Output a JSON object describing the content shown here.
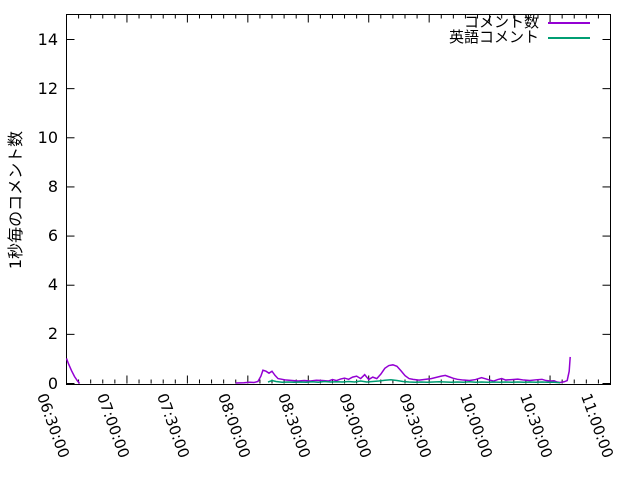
{
  "background": "#ffffff",
  "axis_color": "#000000",
  "chart_data": {
    "type": "line",
    "title": "",
    "xlabel": "",
    "ylabel": "1秒毎のコメント数",
    "grid": false,
    "legend_position": "top-right-inside",
    "ylim": [
      0,
      15
    ],
    "yticks": [
      0,
      2,
      4,
      6,
      8,
      10,
      12,
      14
    ],
    "x_axis": {
      "start": "06:30:00",
      "end": "11:00:00",
      "span_minutes": 270,
      "major_tick_interval_min": 30,
      "minor_tick_interval_min": 6,
      "tick_labels": [
        "06:30:00",
        "07:00:00",
        "07:30:00",
        "08:00:00",
        "08:30:00",
        "09:00:00",
        "09:30:00",
        "10:00:00",
        "10:30:00",
        "11:00:00"
      ]
    },
    "series": [
      {
        "name": "コメント数",
        "color": "#9400d3",
        "x_unit": "minutes_after_06:30:00",
        "segments": [
          [
            [
              0,
              1.02
            ],
            [
              1,
              0.8
            ],
            [
              2.5,
              0.52
            ],
            [
              4,
              0.28
            ],
            [
              5.5,
              0.1
            ],
            [
              6.5,
              0
            ]
          ],
          [
            [
              84,
              0.02
            ],
            [
              88,
              0.03
            ],
            [
              91,
              0.05
            ],
            [
              93,
              0.04
            ],
            [
              95,
              0.08
            ],
            [
              96.5,
              0.3
            ],
            [
              97.5,
              0.54
            ],
            [
              99,
              0.5
            ],
            [
              100.5,
              0.42
            ],
            [
              102,
              0.5
            ],
            [
              103.5,
              0.33
            ],
            [
              105,
              0.2
            ],
            [
              107,
              0.17
            ],
            [
              109,
              0.14
            ],
            [
              112,
              0.12
            ],
            [
              115,
              0.1
            ],
            [
              118,
              0.12
            ],
            [
              121,
              0.1
            ],
            [
              124,
              0.13
            ],
            [
              127,
              0.12
            ],
            [
              130,
              0.1
            ],
            [
              132,
              0.16
            ],
            [
              134,
              0.12
            ],
            [
              136,
              0.18
            ],
            [
              138,
              0.22
            ],
            [
              140,
              0.17
            ],
            [
              142,
              0.26
            ],
            [
              144,
              0.3
            ],
            [
              146,
              0.2
            ],
            [
              148,
              0.36
            ],
            [
              150,
              0.16
            ],
            [
              152,
              0.26
            ],
            [
              154,
              0.2
            ],
            [
              156,
              0.38
            ],
            [
              158,
              0.62
            ],
            [
              160,
              0.73
            ],
            [
              162,
              0.76
            ],
            [
              164,
              0.7
            ],
            [
              166,
              0.52
            ],
            [
              168,
              0.32
            ],
            [
              170,
              0.2
            ],
            [
              172,
              0.17
            ],
            [
              175,
              0.14
            ],
            [
              178,
              0.17
            ],
            [
              181,
              0.2
            ],
            [
              184,
              0.26
            ],
            [
              186,
              0.3
            ],
            [
              188,
              0.33
            ],
            [
              190,
              0.27
            ],
            [
              192,
              0.21
            ],
            [
              194,
              0.17
            ],
            [
              197,
              0.14
            ],
            [
              200,
              0.12
            ],
            [
              203,
              0.16
            ],
            [
              206,
              0.24
            ],
            [
              208,
              0.19
            ],
            [
              210,
              0.14
            ],
            [
              212,
              0.1
            ],
            [
              214,
              0.16
            ],
            [
              216,
              0.2
            ],
            [
              218,
              0.14
            ],
            [
              221,
              0.16
            ],
            [
              224,
              0.18
            ],
            [
              227,
              0.14
            ],
            [
              230,
              0.12
            ],
            [
              233,
              0.15
            ],
            [
              236,
              0.17
            ],
            [
              238,
              0.12
            ],
            [
              240,
              0.1
            ],
            [
              242,
              0.11
            ],
            [
              243.5,
              0.06
            ],
            [
              245,
              0.04
            ],
            [
              247,
              0.07
            ],
            [
              248.5,
              0.12
            ],
            [
              249.5,
              0.5
            ],
            [
              250,
              1.08
            ]
          ]
        ]
      },
      {
        "name": "英語コメント",
        "color": "#009e73",
        "x_unit": "minutes_after_06:30:00",
        "segments": [
          [
            [
              100,
              0.06
            ],
            [
              102,
              0.12
            ],
            [
              104,
              0.08
            ],
            [
              107,
              0.05
            ],
            [
              110,
              0.06
            ],
            [
              113,
              0.05
            ],
            [
              116,
              0.06
            ],
            [
              119,
              0.05
            ],
            [
              122,
              0.07
            ],
            [
              125,
              0.05
            ],
            [
              128,
              0.08
            ],
            [
              131,
              0.06
            ],
            [
              134,
              0.07
            ],
            [
              137,
              0.06
            ],
            [
              140,
              0.08
            ],
            [
              143,
              0.06
            ],
            [
              146,
              0.1
            ],
            [
              149,
              0.06
            ],
            [
              152,
              0.08
            ],
            [
              155,
              0.1
            ],
            [
              158,
              0.13
            ],
            [
              161,
              0.15
            ],
            [
              164,
              0.12
            ],
            [
              167,
              0.08
            ],
            [
              170,
              0.06
            ],
            [
              173,
              0.05
            ],
            [
              176,
              0.06
            ],
            [
              179,
              0.05
            ],
            [
              182,
              0.06
            ],
            [
              185,
              0.07
            ],
            [
              188,
              0.06
            ],
            [
              191,
              0.05
            ],
            [
              194,
              0.06
            ],
            [
              197,
              0.05
            ],
            [
              200,
              0.07
            ],
            [
              203,
              0.05
            ],
            [
              206,
              0.06
            ],
            [
              209,
              0.05
            ],
            [
              212,
              0.06
            ],
            [
              215,
              0.05
            ],
            [
              218,
              0.06
            ],
            [
              221,
              0.05
            ],
            [
              224,
              0.06
            ],
            [
              227,
              0.05
            ],
            [
              230,
              0.06
            ],
            [
              233,
              0.05
            ],
            [
              236,
              0.06
            ],
            [
              239,
              0.05
            ],
            [
              242,
              0.05
            ],
            [
              245,
              0.03
            ]
          ]
        ]
      }
    ]
  }
}
